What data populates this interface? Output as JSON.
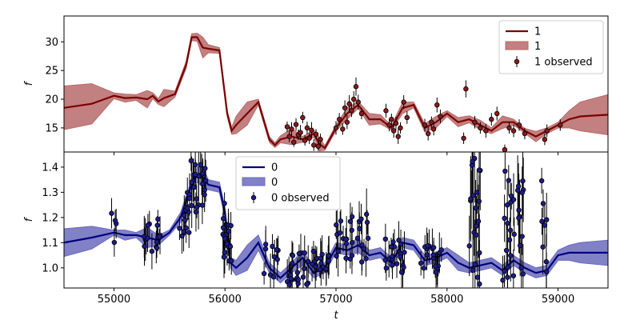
{
  "colors": {
    "top_line": "#7b0000",
    "top_band": "#b86a6a",
    "top_point": "#8b1a1a",
    "bottom_line": "#00007f",
    "bottom_band": "#6b6bbd",
    "bottom_point": "#1c1c8f",
    "errorbar": "#000000"
  },
  "chart_data": [
    {
      "type": "line",
      "panel": "top",
      "xlabel": "",
      "ylabel": "f",
      "xlim": [
        54550,
        59450
      ],
      "ylim": [
        10.8,
        34.5
      ],
      "yticks": [
        15,
        20,
        25,
        30
      ],
      "legend": {
        "placement": "top-right",
        "line_label": "1",
        "band_label": "1",
        "points_label": "1 observed"
      },
      "series": {
        "x": [
          54550,
          54800,
          55000,
          55100,
          55200,
          55300,
          55350,
          55400,
          55450,
          55550,
          55650,
          55700,
          55750,
          55800,
          55850,
          55950,
          56020,
          56060,
          56100,
          56200,
          56300,
          56400,
          56450,
          56500,
          56600,
          56700,
          56800,
          56850,
          56900,
          57000,
          57100,
          57200,
          57300,
          57400,
          57500,
          57600,
          57700,
          57800,
          57900,
          58000,
          58100,
          58200,
          58300,
          58400,
          58500,
          58600,
          58700,
          58800,
          58900,
          59000,
          59100,
          59200,
          59450
        ],
        "mean": [
          18.5,
          19.2,
          20.6,
          20.2,
          20.3,
          20.0,
          20.6,
          19.6,
          20.2,
          20.9,
          26.0,
          30.8,
          30.8,
          29.0,
          28.8,
          28.5,
          17.5,
          14.5,
          15.5,
          17.5,
          19.5,
          13.0,
          12.0,
          13.0,
          13.5,
          13.0,
          14.0,
          12.2,
          11.5,
          15.0,
          17.5,
          19.0,
          16.5,
          16.5,
          15.0,
          18.5,
          19.0,
          15.0,
          16.0,
          17.5,
          16.0,
          16.5,
          15.5,
          14.5,
          16.0,
          16.0,
          14.5,
          13.5,
          14.5,
          15.5,
          16.5,
          17.0,
          17.3
        ],
        "band_half": [
          3.8,
          3.5,
          0.5,
          0.7,
          0.5,
          1.5,
          0.5,
          0.5,
          1.5,
          0.5,
          0.6,
          0.6,
          0.7,
          1.8,
          0.7,
          0.5,
          0.5,
          0.6,
          1.5,
          2.0,
          0.5,
          0.5,
          0.4,
          0.6,
          1.4,
          0.5,
          0.6,
          1.2,
          0.4,
          0.5,
          1.0,
          0.6,
          1.0,
          0.8,
          0.4,
          1.0,
          0.5,
          0.7,
          1.0,
          0.5,
          0.8,
          0.6,
          0.8,
          0.5,
          1.1,
          0.5,
          0.4,
          0.9,
          0.5,
          0.5,
          1.5,
          2.5,
          3.5
        ]
      },
      "observed": [
        [
          56560,
          15.2,
          0.9
        ],
        [
          56580,
          13.5,
          1.0
        ],
        [
          56600,
          14.8,
          1.2
        ],
        [
          56620,
          12.5,
          0.8
        ],
        [
          56640,
          15.6,
          1.1
        ],
        [
          56660,
          13.8,
          0.9
        ],
        [
          56680,
          14.2,
          1.3
        ],
        [
          56700,
          16.8,
          1.0
        ],
        [
          56720,
          12.8,
          0.9
        ],
        [
          56740,
          15.0,
          1.1
        ],
        [
          56760,
          13.2,
          1.0
        ],
        [
          56780,
          14.6,
          1.4
        ],
        [
          56800,
          12.0,
          1.0
        ],
        [
          56820,
          13.9,
          0.9
        ],
        [
          56840,
          11.8,
          0.8
        ],
        [
          56860,
          13.0,
          1.0
        ],
        [
          57000,
          15.0,
          1.2
        ],
        [
          57030,
          16.5,
          1.1
        ],
        [
          57060,
          14.8,
          1.0
        ],
        [
          57080,
          18.5,
          1.3
        ],
        [
          57100,
          16.0,
          1.2
        ],
        [
          57120,
          19.2,
          1.5
        ],
        [
          57140,
          18.0,
          1.1
        ],
        [
          57160,
          20.0,
          1.4
        ],
        [
          57180,
          22.2,
          1.6
        ],
        [
          57200,
          19.5,
          1.3
        ],
        [
          57230,
          17.5,
          1.0
        ],
        [
          57450,
          18.0,
          1.2
        ],
        [
          57480,
          15.5,
          1.1
        ],
        [
          57500,
          16.5,
          1.0
        ],
        [
          57520,
          14.5,
          1.2
        ],
        [
          57540,
          15.8,
          1.1
        ],
        [
          57560,
          13.5,
          1.3
        ],
        [
          57580,
          15.0,
          1.0
        ],
        [
          57610,
          19.5,
          1.2
        ],
        [
          57640,
          16.8,
          1.1
        ],
        [
          57800,
          15.5,
          1.1
        ],
        [
          57830,
          14.0,
          1.2
        ],
        [
          57860,
          16.0,
          1.0
        ],
        [
          57880,
          14.8,
          1.1
        ],
        [
          57910,
          19.0,
          1.3
        ],
        [
          57940,
          17.0,
          1.2
        ],
        [
          58150,
          13.2,
          1.0
        ],
        [
          58170,
          21.8,
          1.5
        ],
        [
          58250,
          16.0,
          1.1
        ],
        [
          58300,
          15.0,
          1.0
        ],
        [
          58350,
          14.5,
          1.2
        ],
        [
          58400,
          16.5,
          1.1
        ],
        [
          58450,
          17.5,
          1.2
        ],
        [
          58520,
          11.2,
          0.9
        ],
        [
          58560,
          15.0,
          1.0
        ],
        [
          58600,
          14.5,
          1.1
        ],
        [
          58650,
          15.5,
          1.0
        ],
        [
          58700,
          14.0,
          1.0
        ],
        [
          58880,
          13.0,
          1.0
        ],
        [
          58900,
          14.5,
          1.1
        ],
        [
          59020,
          15.5,
          1.0
        ]
      ]
    },
    {
      "type": "line",
      "panel": "bottom",
      "xlabel": "t",
      "ylabel": "f",
      "xlim": [
        54550,
        59450
      ],
      "ylim": [
        0.92,
        1.46
      ],
      "yticks": [
        1.0,
        1.1,
        1.2,
        1.3,
        1.4
      ],
      "xticks": [
        55000,
        56000,
        57000,
        58000,
        59000
      ],
      "legend": {
        "placement": "top-center",
        "line_label": "0",
        "band_label": "0",
        "points_label": "0 observed"
      },
      "series": {
        "x": [
          54550,
          54800,
          55000,
          55100,
          55200,
          55300,
          55400,
          55500,
          55600,
          55700,
          55750,
          55800,
          55850,
          55950,
          56000,
          56050,
          56100,
          56200,
          56300,
          56400,
          56500,
          56600,
          56700,
          56800,
          56900,
          57000,
          57100,
          57200,
          57300,
          57400,
          57500,
          57600,
          57700,
          57800,
          57900,
          58000,
          58100,
          58200,
          58300,
          58400,
          58500,
          58600,
          58700,
          58800,
          58900,
          59000,
          59100,
          59200,
          59450
        ],
        "mean": [
          1.1,
          1.12,
          1.14,
          1.13,
          1.13,
          1.12,
          1.11,
          1.14,
          1.2,
          1.33,
          1.37,
          1.36,
          1.33,
          1.32,
          1.22,
          1.02,
          1.0,
          1.04,
          1.1,
          1.0,
          0.96,
          1.0,
          1.04,
          0.98,
          1.0,
          1.08,
          1.07,
          1.09,
          1.05,
          1.06,
          1.02,
          1.1,
          1.09,
          1.03,
          1.04,
          1.06,
          1.02,
          1.0,
          1.01,
          1.02,
          0.99,
          1.03,
          1.0,
          0.98,
          0.99,
          1.05,
          1.06,
          1.06,
          1.06
        ]
      },
      "band_half": [
        0.055,
        0.045,
        0.01,
        0.02,
        0.01,
        0.04,
        0.02,
        0.01,
        0.02,
        0.02,
        0.03,
        0.04,
        0.02,
        0.02,
        0.02,
        0.02,
        0.03,
        0.05,
        0.03,
        0.02,
        0.02,
        0.02,
        0.03,
        0.02,
        0.02,
        0.02,
        0.02,
        0.03,
        0.02,
        0.02,
        0.02,
        0.02,
        0.02,
        0.02,
        0.02,
        0.02,
        0.03,
        0.02,
        0.02,
        0.02,
        0.02,
        0.02,
        0.02,
        0.02,
        0.02,
        0.02,
        0.03,
        0.04,
        0.05
      ],
      "observed_clusters": [
        [
          54970,
          55020,
          4,
          1.04,
          1.24,
          0.05
        ],
        [
          55230,
          55420,
          16,
          1.05,
          1.22,
          0.06
        ],
        [
          55590,
          55680,
          12,
          1.1,
          1.3,
          0.06
        ],
        [
          55680,
          55850,
          24,
          1.22,
          1.44,
          0.07
        ],
        [
          55960,
          56060,
          18,
          1.02,
          1.26,
          0.06
        ],
        [
          56320,
          56480,
          10,
          0.96,
          1.1,
          0.06
        ],
        [
          56560,
          56940,
          40,
          0.93,
          1.08,
          0.06
        ],
        [
          57000,
          57300,
          28,
          1.02,
          1.22,
          0.07
        ],
        [
          57440,
          57620,
          20,
          0.98,
          1.12,
          0.06
        ],
        [
          57760,
          57950,
          18,
          0.98,
          1.1,
          0.06
        ],
        [
          58200,
          58300,
          22,
          0.93,
          1.44,
          0.12
        ],
        [
          58500,
          58700,
          30,
          0.95,
          1.42,
          0.1
        ],
        [
          58850,
          58900,
          8,
          0.95,
          1.4,
          0.1
        ]
      ]
    }
  ]
}
